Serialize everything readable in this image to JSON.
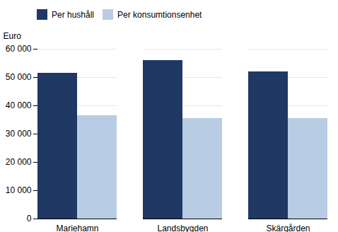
{
  "chart_data": {
    "type": "bar",
    "categories": [
      "Mariehamn",
      "Landsbygden",
      "Skärgården"
    ],
    "series": [
      {
        "name": "Per hushåll",
        "color": "#1F3864",
        "values": [
          51500,
          56000,
          52000
        ]
      },
      {
        "name": "Per konsumtionsenhet",
        "color": "#B8CCE4",
        "values": [
          36500,
          35500,
          35500
        ]
      }
    ],
    "ylabel": "Euro",
    "ylim": [
      0,
      60000
    ],
    "yticks": [
      0,
      {
        "value": 10000,
        "label": "10 000"
      },
      {
        "value": 20000,
        "label": "20 000"
      },
      {
        "value": 30000,
        "label": "30 000"
      },
      {
        "value": 40000,
        "label": "40 000"
      },
      {
        "value": 50000,
        "label": "50 000"
      },
      {
        "value": 60000,
        "label": "60 000"
      }
    ],
    "grid": true,
    "legend": "top"
  }
}
